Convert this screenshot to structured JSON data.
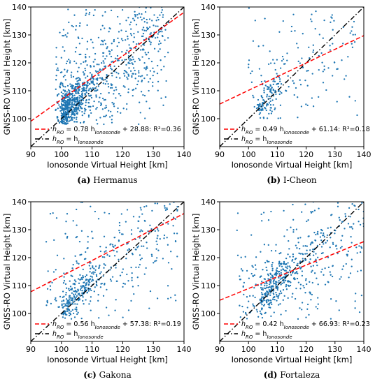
{
  "colors": {
    "scatter": "#1f77b4",
    "fit": "#ff0000",
    "identity": "#000000"
  },
  "chart_data": [
    {
      "type": "scatter",
      "caption_label": "(a)",
      "caption_text": "Hermanus",
      "xlabel": "Ionosonde Virtual Height [km]",
      "ylabel": "GNSS-RO Virtual Height [km]",
      "xlim": [
        90,
        140
      ],
      "ylim": [
        90,
        140
      ],
      "xticks": [
        "90",
        "100",
        "110",
        "120",
        "130",
        "140"
      ],
      "yticks": [
        "100",
        "110",
        "120",
        "130",
        "140"
      ],
      "fit": {
        "slope": 0.78,
        "intercept": 28.88,
        "r2": 0.36
      },
      "legend": {
        "fit_parts": [
          "h",
          "RO",
          " = 0.78 h",
          "Ionosonde",
          " + 28.88: R²=0.36"
        ],
        "identity_parts": [
          "h",
          "RO",
          " = h",
          "Ionosonde"
        ],
        "placement": "lower-left"
      },
      "density": "high",
      "point_cloud": {
        "n": 1100,
        "x_range": [
          98,
          135
        ],
        "y_range": [
          98,
          140
        ],
        "concentration": [
          100,
          104
        ]
      }
    },
    {
      "type": "scatter",
      "caption_label": "(b)",
      "caption_text": "I-Cheon",
      "xlabel": "Ionosonde Virtual Height [km]",
      "ylabel": "GNSS-RO Virtual Height [km]",
      "xlim": [
        90,
        140
      ],
      "ylim": [
        90,
        140
      ],
      "xticks": [
        "90",
        "100",
        "110",
        "120",
        "130",
        "140"
      ],
      "yticks": [
        "100",
        "110",
        "120",
        "130",
        "140"
      ],
      "fit": {
        "slope": 0.49,
        "intercept": 61.14,
        "r2": 0.18
      },
      "legend": {
        "fit_parts": [
          "h",
          "RO",
          " = 0.49 h",
          "Ionosonde",
          " + 61.14: R²=0.18"
        ],
        "identity_parts": [
          "h",
          "RO",
          " = h",
          "Ionosonde"
        ],
        "placement": "lower-left"
      },
      "density": "low",
      "point_cloud": {
        "n": 260,
        "x_range": [
          100,
          138
        ],
        "y_range": [
          100,
          140
        ],
        "concentration": [
          103,
          107
        ]
      }
    },
    {
      "type": "scatter",
      "caption_label": "(c)",
      "caption_text": "Gakona",
      "xlabel": "Ionosonde Virtual Height [km]",
      "ylabel": "GNSS-RO Virtual Height [km]",
      "xlim": [
        90,
        140
      ],
      "ylim": [
        90,
        140
      ],
      "xticks": [
        "90",
        "100",
        "110",
        "120",
        "130",
        "140"
      ],
      "yticks": [
        "100",
        "110",
        "120",
        "130",
        "140"
      ],
      "fit": {
        "slope": 0.56,
        "intercept": 57.38,
        "r2": 0.19
      },
      "legend": {
        "fit_parts": [
          "h",
          "RO",
          " = 0.56 h",
          "Ionosonde",
          " + 57.38: R²=0.19"
        ],
        "identity_parts": [
          "h",
          "RO",
          " = h",
          "Ionosonde"
        ],
        "placement": "lower-left"
      },
      "density": "medium",
      "point_cloud": {
        "n": 520,
        "x_range": [
          95,
          138
        ],
        "y_range": [
          98,
          140
        ],
        "concentration": [
          100,
          106
        ]
      }
    },
    {
      "type": "scatter",
      "caption_label": "(d)",
      "caption_text": "Fortaleza",
      "xlabel": "Ionosonde Virtual Height [km]",
      "ylabel": "GNSS-RO Virtual Height [km]",
      "xlim": [
        90,
        140
      ],
      "ylim": [
        90,
        140
      ],
      "xticks": [
        "90",
        "100",
        "110",
        "120",
        "130",
        "140"
      ],
      "yticks": [
        "100",
        "110",
        "120",
        "130",
        "140"
      ],
      "fit": {
        "slope": 0.42,
        "intercept": 66.93,
        "r2": 0.23
      },
      "legend": {
        "fit_parts": [
          "h",
          "RO",
          " = 0.42 h",
          "Ionosonde",
          " + 66.93: R²=0.23"
        ],
        "identity_parts": [
          "h",
          "RO",
          " = h",
          "Ionosonde"
        ],
        "placement": "lower-left"
      },
      "density": "medium",
      "point_cloud": {
        "n": 600,
        "x_range": [
          96,
          140
        ],
        "y_range": [
          98,
          140
        ],
        "concentration": [
          104,
          112
        ]
      }
    }
  ]
}
